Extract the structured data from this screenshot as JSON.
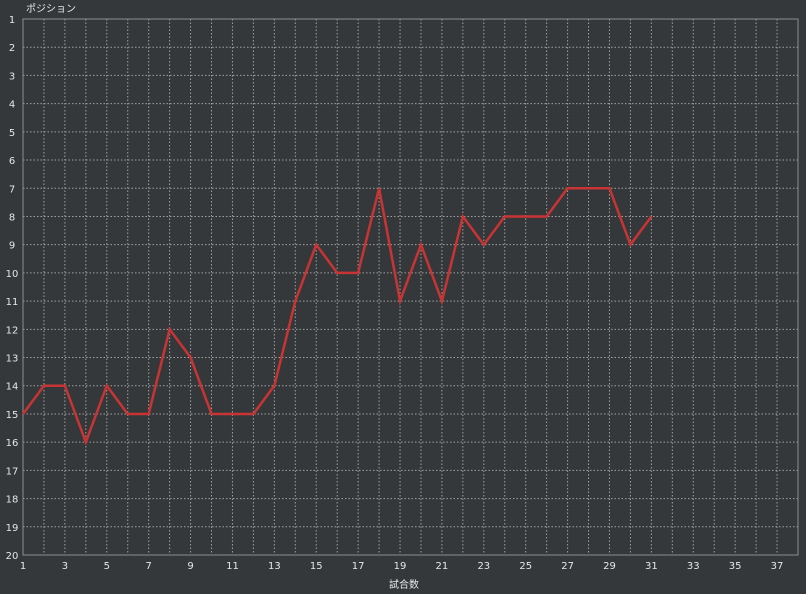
{
  "chart_data": {
    "type": "line",
    "title": "",
    "xlabel": "試合数",
    "ylabel": "ポジション",
    "xlim": [
      1,
      38
    ],
    "ylim": [
      1,
      20
    ],
    "y_inverted": true,
    "grid": true,
    "x_ticks": [
      1,
      3,
      5,
      7,
      9,
      11,
      13,
      15,
      17,
      19,
      21,
      23,
      25,
      27,
      29,
      31,
      33,
      35,
      37
    ],
    "y_ticks": [
      1,
      2,
      3,
      4,
      5,
      6,
      7,
      8,
      9,
      10,
      11,
      12,
      13,
      14,
      15,
      16,
      17,
      18,
      19,
      20
    ],
    "x": [
      1,
      2,
      3,
      4,
      5,
      6,
      7,
      8,
      9,
      10,
      11,
      12,
      13,
      14,
      15,
      16,
      17,
      18,
      19,
      20,
      21,
      22,
      23,
      24,
      25,
      26,
      27,
      28,
      29,
      30,
      31
    ],
    "series": [
      {
        "values": [
          15,
          14,
          14,
          16,
          14,
          15,
          15,
          12,
          13,
          15,
          15,
          15,
          14,
          11,
          9,
          10,
          10,
          7,
          11,
          9,
          11,
          8,
          9,
          8,
          8,
          8,
          7,
          7,
          7,
          9,
          8
        ],
        "color": "#c83434"
      }
    ],
    "colors": {
      "background": "#35383b",
      "grid": "#a0a0a0",
      "axis": "#8c8c8c",
      "text": "#e6e6e6"
    }
  }
}
